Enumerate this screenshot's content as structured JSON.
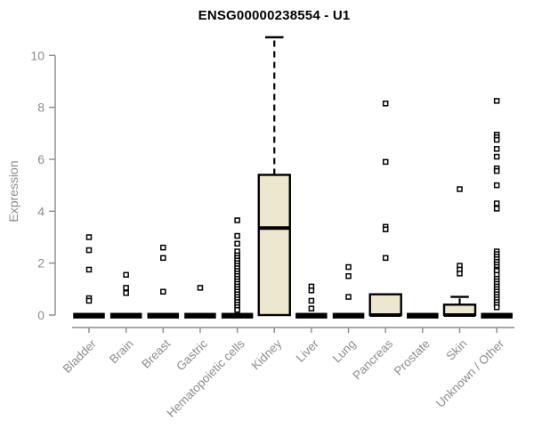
{
  "colors": {
    "box_fill": "#ece7cd",
    "box_stroke": "#000000",
    "axis": "#8c8c8c",
    "title": "#000000",
    "background": "#ffffff",
    "outlier_fill": "#ffffff"
  },
  "chart_data": {
    "type": "boxplot",
    "title": "ENSG00000238554 - U1",
    "ylabel": "Expression",
    "xlabel": "",
    "ylim": [
      0,
      10.8
    ],
    "yticks": [
      0,
      2,
      4,
      6,
      8,
      10
    ],
    "grid": false,
    "legend": "none",
    "categories": [
      "Bladder",
      "Brain",
      "Breast",
      "Gastric",
      "Hematopoietic cells",
      "Kidney",
      "Liver",
      "Lung",
      "Pancreas",
      "Prostate",
      "Skin",
      "Unknown / Other"
    ],
    "series": [
      {
        "category": "Bladder",
        "low": 0,
        "q1": 0,
        "median": 0,
        "q3": 0,
        "high": 0,
        "outliers": [
          3.0,
          2.5,
          1.75,
          0.65,
          0.55
        ]
      },
      {
        "category": "Brain",
        "low": 0,
        "q1": 0,
        "median": 0,
        "q3": 0,
        "high": 0,
        "outliers": [
          1.55,
          1.05,
          0.85
        ]
      },
      {
        "category": "Breast",
        "low": 0,
        "q1": 0,
        "median": 0,
        "q3": 0,
        "high": 0,
        "outliers": [
          2.6,
          2.2,
          0.9
        ]
      },
      {
        "category": "Gastric",
        "low": 0,
        "q1": 0,
        "median": 0,
        "q3": 0,
        "high": 0,
        "outliers": [
          1.05
        ]
      },
      {
        "category": "Hematopoietic cells",
        "low": 0,
        "q1": 0,
        "median": 0,
        "q3": 0,
        "high": 0,
        "outliers": [
          3.65,
          3.05,
          2.75,
          2.45,
          2.3,
          2.2,
          2.1,
          2.0,
          1.9,
          1.8,
          1.7,
          1.6,
          1.5,
          1.4,
          1.3,
          1.2,
          1.1,
          1.0,
          0.9,
          0.8,
          0.7,
          0.6,
          0.5,
          0.4,
          0.3,
          0.2
        ]
      },
      {
        "category": "Kidney",
        "low": 0,
        "q1": 0,
        "median": 3.35,
        "q3": 5.4,
        "high": 10.7,
        "outliers": []
      },
      {
        "category": "Liver",
        "low": 0,
        "q1": 0,
        "median": 0,
        "q3": 0,
        "high": 0,
        "outliers": [
          1.1,
          0.95,
          0.55,
          0.25
        ]
      },
      {
        "category": "Lung",
        "low": 0,
        "q1": 0,
        "median": 0,
        "q3": 0,
        "high": 0,
        "outliers": [
          1.85,
          1.5,
          0.7
        ]
      },
      {
        "category": "Pancreas",
        "low": 0,
        "q1": 0,
        "median": 0,
        "q3": 0.8,
        "high": 0.8,
        "outliers": [
          8.15,
          5.9,
          3.4,
          3.3,
          2.2
        ]
      },
      {
        "category": "Prostate",
        "low": 0,
        "q1": 0,
        "median": 0,
        "q3": 0,
        "high": 0,
        "outliers": []
      },
      {
        "category": "Skin",
        "low": 0,
        "q1": 0,
        "median": 0,
        "q3": 0.4,
        "high": 0.7,
        "outliers": [
          4.85,
          1.9,
          1.75,
          1.6
        ]
      },
      {
        "category": "Unknown / Other",
        "low": 0,
        "q1": 0,
        "median": 0,
        "q3": 0,
        "high": 0,
        "outliers": [
          8.25,
          6.95,
          6.85,
          6.75,
          6.4,
          6.1,
          5.65,
          5.55,
          5.0,
          4.3,
          4.1,
          2.45,
          2.35,
          2.25,
          2.15,
          2.05,
          1.95,
          1.85,
          1.75,
          1.7,
          1.55,
          1.4,
          1.3,
          1.2,
          1.1,
          1.0,
          0.9,
          0.8,
          0.7,
          0.6,
          0.5,
          0.4,
          0.3
        ]
      }
    ]
  }
}
